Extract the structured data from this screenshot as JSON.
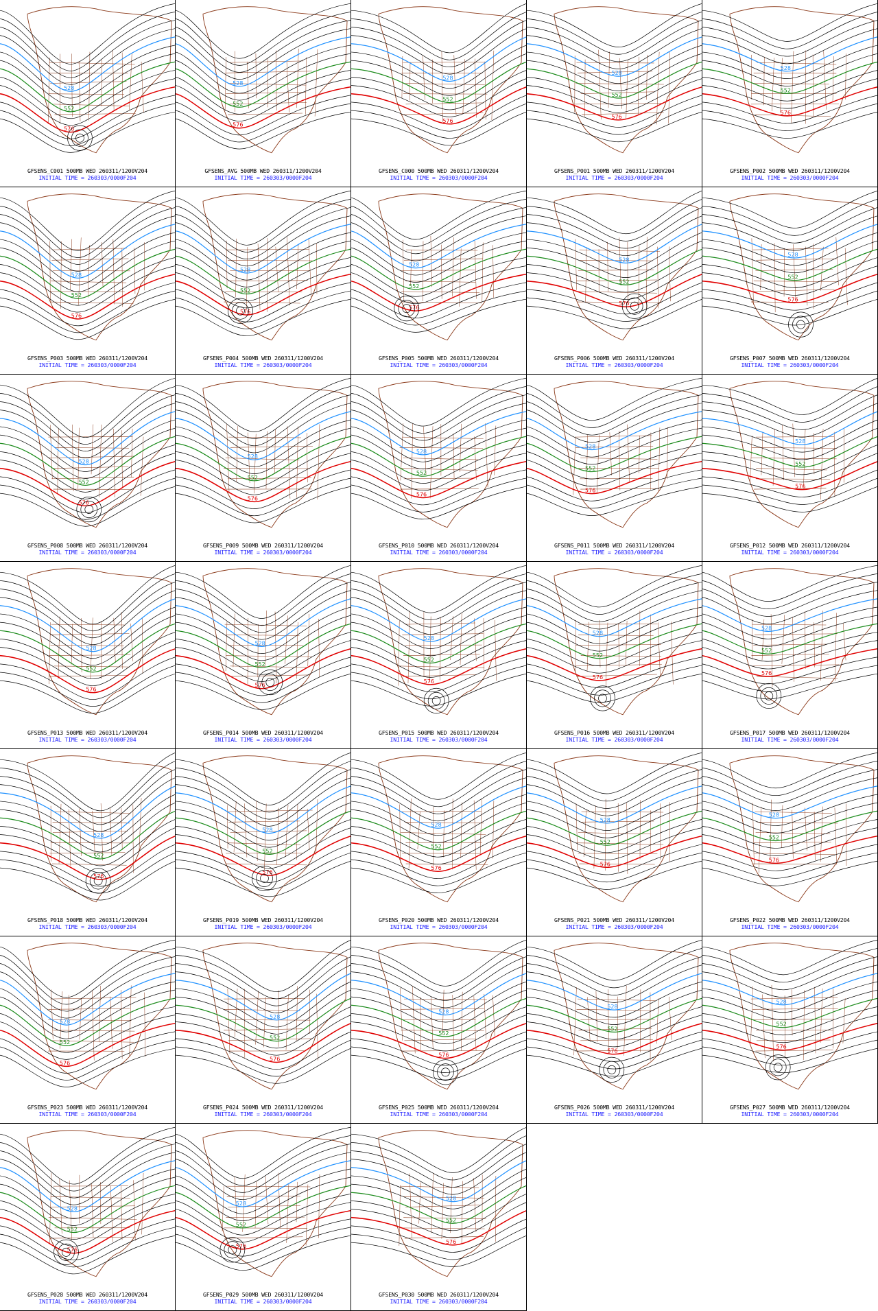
{
  "colors": {
    "height_contour": "#000000",
    "coastline": "#8b3a1a",
    "contour_528": "#1e90ff",
    "contour_552": "#1a8a1a",
    "contour_576": "#e00000",
    "caption_title": "#000000",
    "caption_init": "#1a1aff"
  },
  "contour_labels": {
    "blue": "528",
    "green": "552",
    "red": "576"
  },
  "panels": [
    {
      "title": "GFSENS_C001 500MB WED 260311/1200V204",
      "init": "INITIAL TIME = 260303/0000F204"
    },
    {
      "title": "GFSENS_AVG 500MB WED 260311/1200V204",
      "init": "INITIAL TIME = 260303/0000F204"
    },
    {
      "title": "GFSENS_C000 500MB WED 260311/1200V204",
      "init": "INITIAL TIME = 260303/0000F204"
    },
    {
      "title": "GFSENS_P001 500MB WED 260311/1200V204",
      "init": "INITIAL TIME = 260303/0000F204"
    },
    {
      "title": "GFSENS_P002 500MB WED 260311/1200V204",
      "init": "INITIAL TIME = 260303/0000F204"
    },
    {
      "title": "GFSENS_P003 500MB WED 260311/1200V204",
      "init": "INITIAL TIME = 260303/0000F204"
    },
    {
      "title": "GFSENS_P004 500MB WED 260311/1200V204",
      "init": "INITIAL TIME = 260303/0000F204"
    },
    {
      "title": "GFSENS_P005 500MB WED 260311/1200V204",
      "init": "INITIAL TIME = 260303/0000F204"
    },
    {
      "title": "GFSENS_P006 500MB WED 260311/1200V204",
      "init": "INITIAL TIME = 260303/0000F204"
    },
    {
      "title": "GFSENS_P007 500MB WED 260311/1200V204",
      "init": "INITIAL TIME = 260303/0000F204"
    },
    {
      "title": "GFSENS_P008 500MB WED 260311/1200V204",
      "init": "INITIAL TIME = 260303/0000F204"
    },
    {
      "title": "GFSENS_P009 500MB WED 260311/1200V204",
      "init": "INITIAL TIME = 260303/0000F204"
    },
    {
      "title": "GFSENS_P010 500MB WED 260311/1200V204",
      "init": "INITIAL TIME = 260303/0000F204"
    },
    {
      "title": "GFSENS_P011 500MB WED 260311/1200V204",
      "init": "INITIAL TIME = 260303/0000F204"
    },
    {
      "title": "GFSENS_P012 500MB WED 260311/1200V204",
      "init": "INITIAL TIME = 260303/0000F204"
    },
    {
      "title": "GFSENS_P013 500MB WED 260311/1200V204",
      "init": "INITIAL TIME = 260303/0000F204"
    },
    {
      "title": "GFSENS_P014 500MB WED 260311/1200V204",
      "init": "INITIAL TIME = 260303/0000F204"
    },
    {
      "title": "GFSENS_P015 500MB WED 260311/1200V204",
      "init": "INITIAL TIME = 260303/0000F204"
    },
    {
      "title": "GFSENS_P016 500MB WED 260311/1200V204",
      "init": "INITIAL TIME = 260303/0000F204"
    },
    {
      "title": "GFSENS_P017 500MB WED 260311/1200V204",
      "init": "INITIAL TIME = 260303/0000F204"
    },
    {
      "title": "GFSENS_P018 500MB WED 260311/1200V204",
      "init": "INITIAL TIME = 260303/0000F204"
    },
    {
      "title": "GFSENS_P019 500MB WED 260311/1200V204",
      "init": "INITIAL TIME = 260303/0000F204"
    },
    {
      "title": "GFSENS_P020 500MB WED 260311/1200V204",
      "init": "INITIAL TIME = 260303/0000F204"
    },
    {
      "title": "GFSENS_P021 500MB WED 260311/1200V204",
      "init": "INITIAL TIME = 260303/0000F204"
    },
    {
      "title": "GFSENS_P022 500MB WED 260311/1200V204",
      "init": "INITIAL TIME = 260303/0000F204"
    },
    {
      "title": "GFSENS_P023 500MB WED 260311/1200V204",
      "init": "INITIAL TIME = 260303/0000F204"
    },
    {
      "title": "GFSENS_P024 500MB WED 260311/1200V204",
      "init": "INITIAL TIME = 260303/0000F204"
    },
    {
      "title": "GFSENS_P025 500MB WED 260311/1200V204",
      "init": "INITIAL TIME = 260303/0000F204"
    },
    {
      "title": "GFSENS_P026 500MB WED 260311/1200V204",
      "init": "INITIAL TIME = 260303/0000F204"
    },
    {
      "title": "GFSENS_P027 500MB WED 260311/1200V204",
      "init": "INITIAL TIME = 260303/0000F204"
    },
    {
      "title": "GFSENS_P028 500MB WED 260311/1200V204",
      "init": "INITIAL TIME = 260303/0000F204"
    },
    {
      "title": "GFSENS_P029 500MB WED 260311/1200V204",
      "init": "INITIAL TIME = 260303/0000F204"
    },
    {
      "title": "GFSENS_P030 500MB WED 260311/1200V204",
      "init": "INITIAL TIME = 260303/0000F204"
    }
  ]
}
